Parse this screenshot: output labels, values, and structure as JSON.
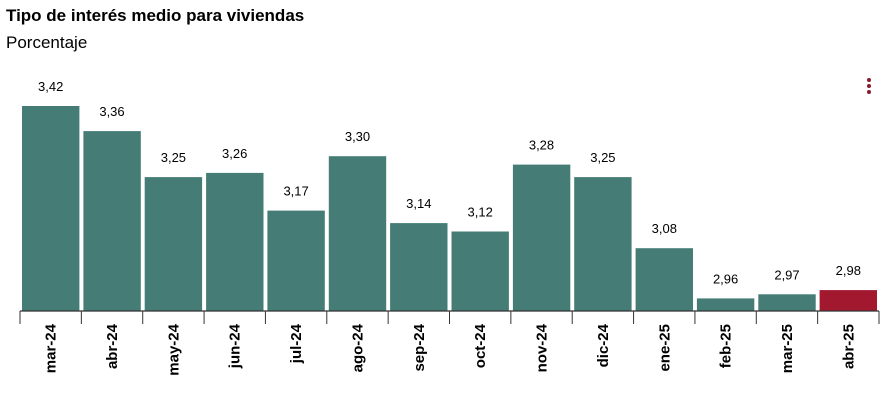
{
  "title": "Tipo de interés medio para viviendas",
  "subtitle": "Porcentaje",
  "menu_icon": "kebab-menu-icon",
  "colors": {
    "bar": "#457d76",
    "highlight": "#a1182f",
    "axis": "#333333",
    "menu": "#8a1a2e"
  },
  "chart_data": {
    "type": "bar",
    "title": "Tipo de interés medio para viviendas",
    "subtitle": "Porcentaje",
    "categories": [
      "mar-24",
      "abr-24",
      "may-24",
      "jun-24",
      "jul-24",
      "ago-24",
      "sep-24",
      "oct-24",
      "nov-24",
      "dic-24",
      "ene-25",
      "feb-25",
      "mar-25",
      "abr-25"
    ],
    "values": [
      3.42,
      3.36,
      3.25,
      3.26,
      3.17,
      3.3,
      3.14,
      3.12,
      3.28,
      3.25,
      3.08,
      2.96,
      2.97,
      2.98
    ],
    "labels": [
      "3,42",
      "3,36",
      "3,25",
      "3,26",
      "3,17",
      "3,30",
      "3,14",
      "3,12",
      "3,28",
      "3,25",
      "3,08",
      "2,96",
      "2,97",
      "2,98"
    ],
    "highlight_index": 13,
    "ylim": [
      2.93,
      3.42
    ],
    "grid": false,
    "legend": false
  }
}
